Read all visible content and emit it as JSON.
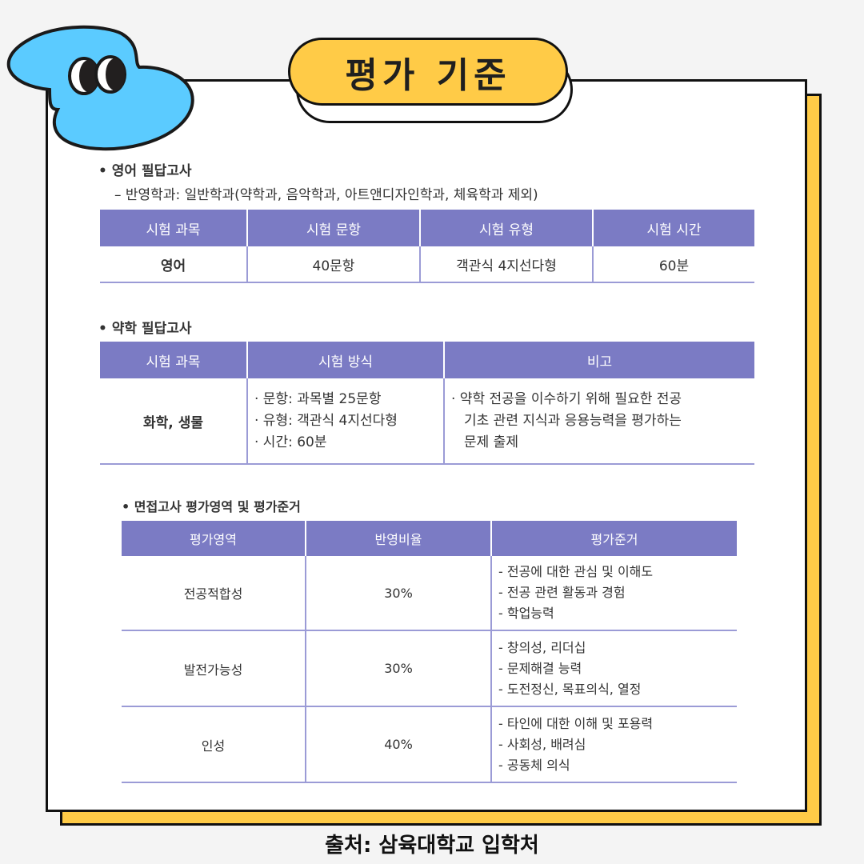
{
  "title": "평가 기준",
  "colors": {
    "accent_yellow": "#FFCB47",
    "blob_blue": "#5BCBFF",
    "table_header": "#7B7BC4"
  },
  "mascot_icon": "blue-blob-with-eyes",
  "english": {
    "heading": "• 영어 필답고사",
    "note": "– 반영학과: 일반학과(약학과, 음악학과, 아트앤디자인학과, 체육학과 제외)",
    "headers": [
      "시험 과목",
      "시험 문항",
      "시험 유형",
      "시험 시간"
    ],
    "row": [
      "영어",
      "40문항",
      "객관식 4지선다형",
      "60분"
    ]
  },
  "pharmacy": {
    "heading": "• 약학 필답고사",
    "headers": [
      "시험 과목",
      "시험 방식",
      "비고"
    ],
    "subject": "화학, 생물",
    "method": [
      "· 문항: 과목별 25문항",
      "· 유형: 객관식 4지선다형",
      "· 시간: 60분"
    ],
    "remark": [
      "· 약학 전공을 이수하기 위해 필요한 전공",
      "기초 관련 지식과 응용능력을 평가하는",
      "문제 출제"
    ]
  },
  "interview": {
    "heading": "• 면접고사 평가영역 및 평가준거",
    "headers": [
      "평가영역",
      "반영비율",
      "평가준거"
    ],
    "rows": [
      {
        "area": "전공적합성",
        "ratio": "30%",
        "criteria": [
          "- 전공에 대한 관심 및 이해도",
          "- 전공 관련 활동과 경험",
          "- 학업능력"
        ]
      },
      {
        "area": "발전가능성",
        "ratio": "30%",
        "criteria": [
          "- 창의성, 리더십",
          "- 문제해결 능력",
          "- 도전정신, 목표의식, 열정"
        ]
      },
      {
        "area": "인성",
        "ratio": "40%",
        "criteria": [
          "- 타인에 대한 이해 및 포용력",
          "- 사회성, 배려심",
          "- 공동체 의식"
        ]
      }
    ]
  },
  "source": "출처: 삼육대학교 입학처"
}
